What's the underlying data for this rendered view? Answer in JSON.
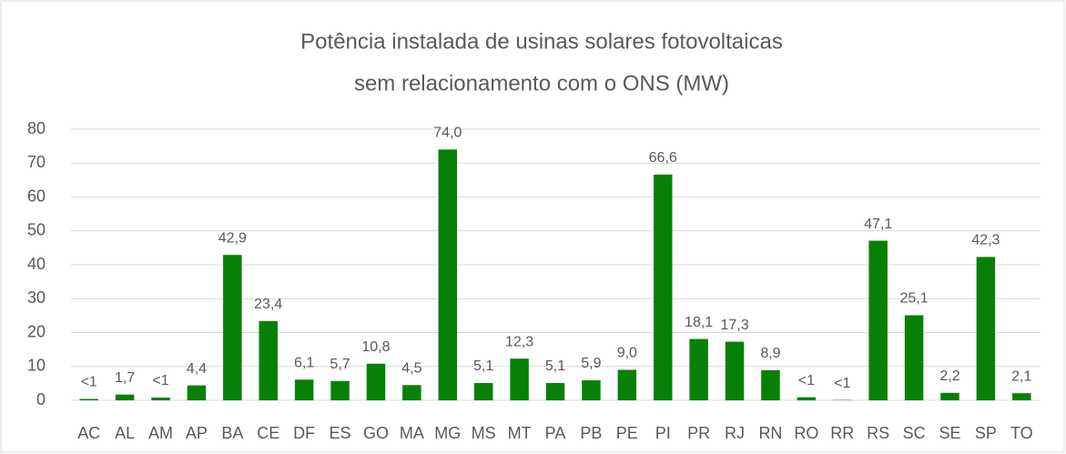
{
  "chart_data": {
    "type": "bar",
    "title": [
      "Potência instalada de usinas solares fotovoltaicas",
      "sem relacionamento com o ONS (MW)"
    ],
    "categories": [
      "AC",
      "AL",
      "AM",
      "AP",
      "BA",
      "CE",
      "DF",
      "ES",
      "GO",
      "MA",
      "MG",
      "MS",
      "MT",
      "PA",
      "PB",
      "PE",
      "PI",
      "PR",
      "RJ",
      "RN",
      "RO",
      "RR",
      "RS",
      "SC",
      "SE",
      "SP",
      "TO"
    ],
    "values": [
      0.4,
      1.7,
      0.8,
      4.4,
      42.9,
      23.4,
      6.1,
      5.7,
      10.8,
      4.5,
      74.0,
      5.1,
      12.3,
      5.1,
      5.9,
      9.0,
      66.6,
      18.1,
      17.3,
      8.9,
      0.9,
      0.1,
      47.1,
      25.1,
      2.2,
      42.3,
      2.1
    ],
    "value_labels": [
      "<1",
      "1,7",
      "<1",
      "4,4",
      "42,9",
      "23,4",
      "6,1",
      "5,7",
      "10,8",
      "4,5",
      "74,0",
      "5,1",
      "12,3",
      "5,1",
      "5,9",
      "9,0",
      "66,6",
      "18,1",
      "17,3",
      "8,9",
      "<1",
      "<1",
      "47,1",
      "25,1",
      "2,2",
      "42,3",
      "2,1"
    ],
    "color": "#078007",
    "ylim": [
      0,
      80
    ],
    "yticks": [
      0,
      10,
      20,
      30,
      40,
      50,
      60,
      70,
      80
    ],
    "grid": true
  }
}
